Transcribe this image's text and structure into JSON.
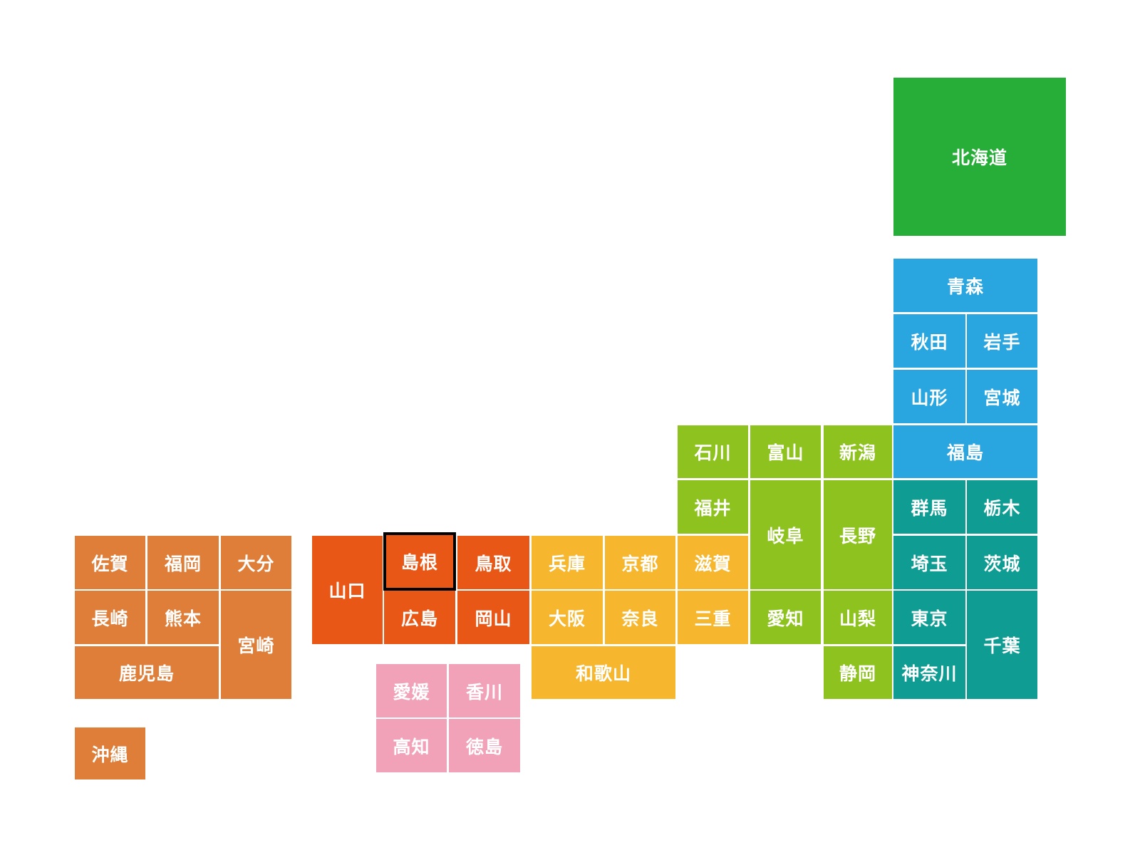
{
  "region_colors": {
    "hokkaido": "#27ae38",
    "tohoku": "#29a5e0",
    "kanto": "#0f9c93",
    "chubu": "#8ec31f",
    "kinki": "#f6b62e",
    "chugoku": "#e95716",
    "shikoku": "#f1a2b8",
    "kyushu": "#de7e38"
  },
  "selected": "shimane",
  "prefectures": [
    {
      "id": "hokkaido",
      "label": "北海道",
      "region": "hokkaido"
    },
    {
      "id": "aomori",
      "label": "青森",
      "region": "tohoku"
    },
    {
      "id": "akita",
      "label": "秋田",
      "region": "tohoku"
    },
    {
      "id": "iwate",
      "label": "岩手",
      "region": "tohoku"
    },
    {
      "id": "yamagata",
      "label": "山形",
      "region": "tohoku"
    },
    {
      "id": "miyagi",
      "label": "宮城",
      "region": "tohoku"
    },
    {
      "id": "fukushima",
      "label": "福島",
      "region": "tohoku"
    },
    {
      "id": "gunma",
      "label": "群馬",
      "region": "kanto"
    },
    {
      "id": "tochigi",
      "label": "栃木",
      "region": "kanto"
    },
    {
      "id": "saitama",
      "label": "埼玉",
      "region": "kanto"
    },
    {
      "id": "ibaraki",
      "label": "茨城",
      "region": "kanto"
    },
    {
      "id": "tokyo",
      "label": "東京",
      "region": "kanto"
    },
    {
      "id": "chiba",
      "label": "千葉",
      "region": "kanto"
    },
    {
      "id": "kanagawa",
      "label": "神奈川",
      "region": "kanto"
    },
    {
      "id": "ishikawa",
      "label": "石川",
      "region": "chubu"
    },
    {
      "id": "toyama",
      "label": "富山",
      "region": "chubu"
    },
    {
      "id": "niigata",
      "label": "新潟",
      "region": "chubu"
    },
    {
      "id": "fukui",
      "label": "福井",
      "region": "chubu"
    },
    {
      "id": "gifu",
      "label": "岐阜",
      "region": "chubu"
    },
    {
      "id": "nagano",
      "label": "長野",
      "region": "chubu"
    },
    {
      "id": "aichi",
      "label": "愛知",
      "region": "chubu"
    },
    {
      "id": "yamanashi",
      "label": "山梨",
      "region": "chubu"
    },
    {
      "id": "shizuoka",
      "label": "静岡",
      "region": "chubu"
    },
    {
      "id": "shiga",
      "label": "滋賀",
      "region": "kinki"
    },
    {
      "id": "kyoto",
      "label": "京都",
      "region": "kinki"
    },
    {
      "id": "hyogo",
      "label": "兵庫",
      "region": "kinki"
    },
    {
      "id": "osaka",
      "label": "大阪",
      "region": "kinki"
    },
    {
      "id": "nara",
      "label": "奈良",
      "region": "kinki"
    },
    {
      "id": "mie",
      "label": "三重",
      "region": "kinki"
    },
    {
      "id": "wakayama",
      "label": "和歌山",
      "region": "kinki"
    },
    {
      "id": "yamaguchi",
      "label": "山口",
      "region": "chugoku"
    },
    {
      "id": "shimane",
      "label": "島根",
      "region": "chugoku"
    },
    {
      "id": "tottori",
      "label": "鳥取",
      "region": "chugoku"
    },
    {
      "id": "hiroshima",
      "label": "広島",
      "region": "chugoku"
    },
    {
      "id": "okayama",
      "label": "岡山",
      "region": "chugoku"
    },
    {
      "id": "ehime",
      "label": "愛媛",
      "region": "shikoku"
    },
    {
      "id": "kagawa",
      "label": "香川",
      "region": "shikoku"
    },
    {
      "id": "kochi",
      "label": "高知",
      "region": "shikoku"
    },
    {
      "id": "tokushima",
      "label": "徳島",
      "region": "shikoku"
    },
    {
      "id": "saga",
      "label": "佐賀",
      "region": "kyushu"
    },
    {
      "id": "fukuoka",
      "label": "福岡",
      "region": "kyushu"
    },
    {
      "id": "oita",
      "label": "大分",
      "region": "kyushu"
    },
    {
      "id": "nagasaki",
      "label": "長崎",
      "region": "kyushu"
    },
    {
      "id": "kumamoto",
      "label": "熊本",
      "region": "kyushu"
    },
    {
      "id": "miyazaki",
      "label": "宮崎",
      "region": "kyushu"
    },
    {
      "id": "kagoshima",
      "label": "鹿児島",
      "region": "kyushu"
    },
    {
      "id": "okinawa",
      "label": "沖縄",
      "region": "kyushu"
    }
  ]
}
